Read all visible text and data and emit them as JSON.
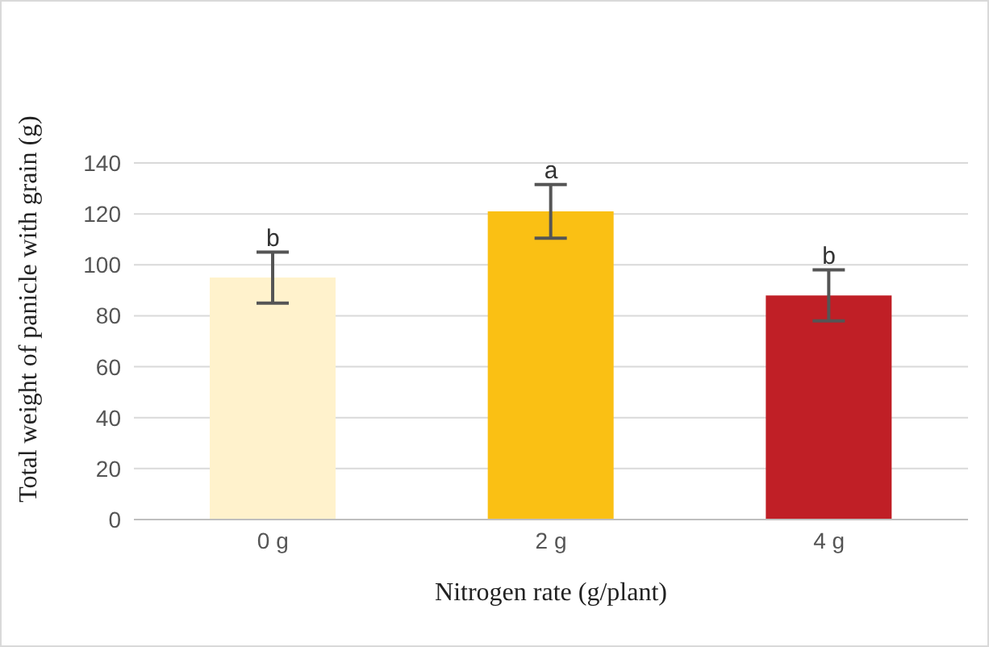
{
  "chart_data": {
    "type": "bar",
    "xlabel": "Nitrogen rate (g/plant)",
    "ylabel": "Total weight of panicle with grain (g)",
    "categories": [
      "0 g",
      "2 g",
      "4 g"
    ],
    "values": [
      95,
      121,
      88
    ],
    "colors": [
      "#fff2cc",
      "#fac014",
      "#c01f26"
    ],
    "errors": [
      10,
      10.5,
      10
    ],
    "annotations": [
      {
        "text": "b",
        "x": "0 g",
        "y": 105
      },
      {
        "text": "a",
        "x": "2 g",
        "y": 131.5
      },
      {
        "text": "b",
        "x": "4 g",
        "y": 98
      }
    ],
    "ylim": [
      0,
      140
    ],
    "yticks": [
      0,
      20,
      40,
      60,
      80,
      100,
      120,
      140
    ],
    "grid": "y",
    "legend": false
  }
}
